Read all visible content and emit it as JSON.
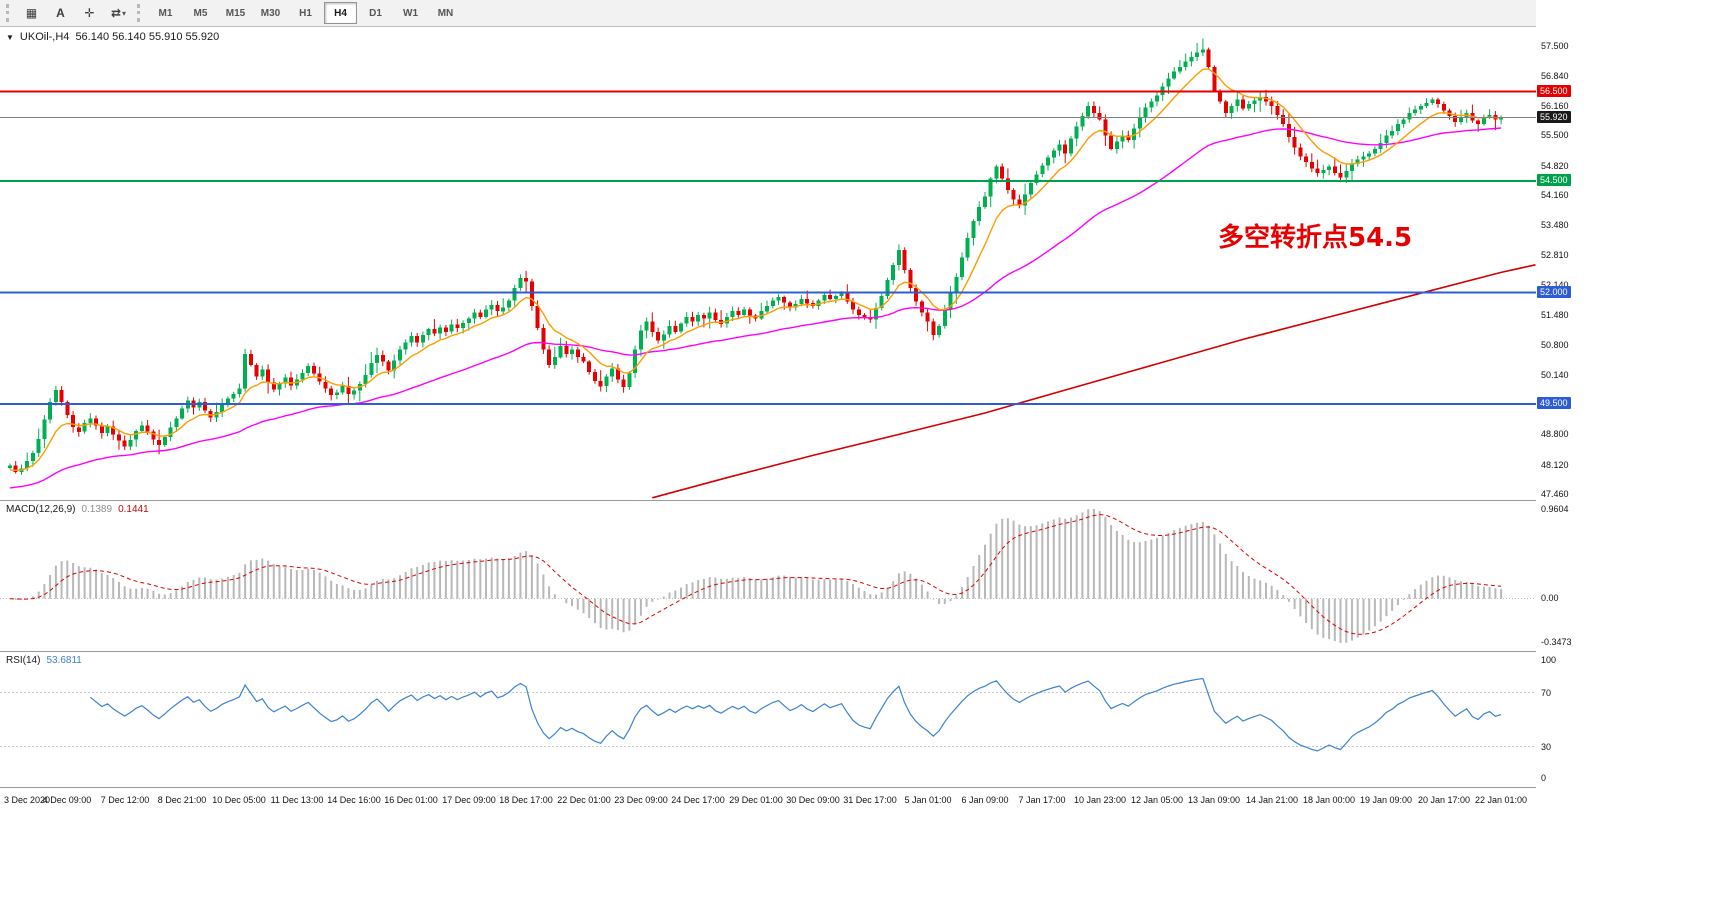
{
  "toolbar": {
    "icons": [
      {
        "name": "chart-grid-icon",
        "glyph": "▦"
      },
      {
        "name": "text-tool-icon",
        "glyph": "A"
      },
      {
        "name": "crosshair-icon",
        "glyph": "✛"
      },
      {
        "name": "objects-dropdown-icon",
        "glyph": "⇄"
      }
    ],
    "dropdown_caret": "▾",
    "timeframes": [
      {
        "label": "M1"
      },
      {
        "label": "M5"
      },
      {
        "label": "M15"
      },
      {
        "label": "M30"
      },
      {
        "label": "H1"
      },
      {
        "label": "H4"
      },
      {
        "label": "D1"
      },
      {
        "label": "W1"
      },
      {
        "label": "MN"
      }
    ],
    "active_timeframe": "H4"
  },
  "symbol_bar": {
    "collapse_icon": "▼",
    "symbol": "UKOil-,H4",
    "ohlc": "56.140 56.140 55.910 55.920"
  },
  "annotation": {
    "text": "多空转折点54.5",
    "color": "#e60000"
  },
  "price_axis": {
    "ticks": [
      "57.500",
      "56.840",
      "56.160",
      "55.500",
      "54.820",
      "54.160",
      "53.480",
      "52.810",
      "52.140",
      "51.480",
      "50.800",
      "50.140",
      "48.800",
      "48.120",
      "47.460"
    ],
    "badges": [
      {
        "label": "56.500",
        "color": "#e60000"
      },
      {
        "label": "55.920",
        "color": "#1a1a1a"
      },
      {
        "label": "54.500",
        "color": "#00a14b"
      },
      {
        "label": "52.000",
        "color": "#2e5cd5"
      },
      {
        "label": "49.500",
        "color": "#2e5cd5"
      }
    ]
  },
  "macd_panel": {
    "title": "MACD(12,26,9)",
    "main_value": "0.1389",
    "signal_value": "0.1441",
    "axis_top": "0.9604",
    "axis_zero": "0.00",
    "axis_bottom": "-0.3473"
  },
  "rsi_panel": {
    "title": "RSI(14)",
    "value": "53.6811",
    "axis": [
      "100",
      "70",
      "30",
      "0"
    ]
  },
  "time_axis": {
    "labels": [
      "3 Dec 2020",
      "4 Dec 09:00",
      "7 Dec 12:00",
      "8 Dec 21:00",
      "10 Dec 05:00",
      "11 Dec 13:00",
      "14 Dec 16:00",
      "16 Dec 01:00",
      "17 Dec 09:00",
      "18 Dec 17:00",
      "22 Dec 01:00",
      "23 Dec 09:00",
      "24 Dec 17:00",
      "29 Dec 01:00",
      "30 Dec 09:00",
      "31 Dec 17:00",
      "5 Jan 01:00",
      "6 Jan 09:00",
      "7 Jan 17:00",
      "10 Jan 23:00",
      "12 Jan 05:00",
      "13 Jan 09:00",
      "14 Jan 21:00",
      "18 Jan 00:00",
      "19 Jan 09:00",
      "20 Jan 17:00",
      "22 Jan 01:00"
    ]
  },
  "chart_data": {
    "type": "candlestick",
    "symbol": "UKOil-",
    "timeframe": "H4",
    "title": "UKOil-,H4",
    "current_bar_ohlc": [
      56.14,
      56.14,
      55.91,
      55.92
    ],
    "current_price": 55.92,
    "price_range": [
      47.35,
      57.95
    ],
    "up_color": "#00b050",
    "down_color": "#e60000",
    "closes": [
      48.12,
      47.98,
      48.06,
      48.22,
      48.4,
      48.72,
      49.15,
      49.55,
      49.82,
      49.55,
      49.25,
      48.98,
      48.88,
      49.08,
      49.18,
      49.02,
      48.85,
      49.0,
      48.82,
      48.68,
      48.55,
      48.7,
      48.9,
      49.02,
      48.88,
      48.7,
      48.58,
      48.76,
      48.98,
      49.18,
      49.4,
      49.58,
      49.42,
      49.55,
      49.35,
      49.2,
      49.32,
      49.5,
      49.62,
      49.72,
      49.85,
      50.62,
      50.38,
      50.12,
      50.28,
      49.98,
      49.82,
      49.96,
      50.1,
      49.92,
      50.05,
      50.2,
      50.35,
      50.18,
      50.0,
      49.85,
      49.7,
      49.76,
      49.9,
      49.72,
      49.8,
      49.95,
      50.15,
      50.42,
      50.6,
      50.45,
      50.25,
      50.48,
      50.72,
      50.88,
      51.02,
      50.88,
      51.05,
      51.18,
      51.08,
      51.22,
      51.12,
      51.28,
      51.2,
      51.32,
      51.42,
      51.55,
      51.45,
      51.62,
      51.72,
      51.58,
      51.66,
      51.82,
      52.1,
      52.32,
      52.25,
      51.7,
      51.2,
      50.72,
      50.38,
      50.55,
      50.8,
      50.62,
      50.72,
      50.55,
      50.45,
      50.22,
      50.02,
      49.9,
      50.12,
      50.3,
      50.05,
      49.88,
      50.2,
      50.72,
      51.15,
      51.35,
      51.12,
      50.92,
      51.06,
      51.25,
      51.12,
      51.3,
      51.45,
      51.35,
      51.5,
      51.42,
      51.55,
      51.38,
      51.3,
      51.45,
      51.58,
      51.5,
      51.62,
      51.48,
      51.42,
      51.58,
      51.7,
      51.82,
      51.9,
      51.78,
      51.66,
      51.74,
      51.86,
      51.76,
      51.7,
      51.82,
      51.94,
      51.86,
      51.92,
      51.98,
      51.8,
      51.62,
      51.5,
      51.44,
      51.4,
      51.65,
      51.92,
      52.28,
      52.62,
      52.95,
      52.5,
      52.1,
      51.8,
      51.55,
      51.35,
      51.05,
      51.25,
      51.62,
      51.98,
      52.35,
      52.78,
      53.22,
      53.6,
      53.92,
      54.15,
      54.55,
      54.82,
      54.55,
      54.3,
      54.08,
      53.95,
      54.2,
      54.45,
      54.65,
      54.85,
      55.02,
      55.18,
      55.32,
      55.12,
      55.45,
      55.72,
      55.95,
      56.18,
      56.02,
      55.88,
      55.52,
      55.22,
      55.38,
      55.52,
      55.42,
      55.68,
      55.92,
      56.15,
      56.28,
      56.42,
      56.62,
      56.8,
      56.95,
      57.05,
      57.18,
      57.28,
      57.38,
      57.45,
      57.05,
      56.52,
      56.28,
      56.02,
      56.18,
      56.32,
      56.12,
      56.22,
      56.3,
      56.38,
      56.28,
      56.18,
      55.98,
      55.78,
      55.48,
      55.25,
      55.05,
      54.92,
      54.78,
      54.68,
      54.75,
      54.82,
      54.68,
      54.58,
      54.72,
      54.88,
      54.98,
      55.05,
      55.12,
      55.22,
      55.35,
      55.52,
      55.62,
      55.78,
      55.88,
      56.02,
      56.1,
      56.18,
      56.25,
      56.32,
      56.22,
      56.08,
      55.95,
      55.82,
      55.92,
      56.02,
      55.85,
      55.78,
      55.92,
      55.98,
      55.88,
      55.92
    ],
    "levels": [
      {
        "price": 56.5,
        "color": "#e60000"
      },
      {
        "price": 54.5,
        "color": "#00a14b"
      },
      {
        "price": 52.0,
        "color": "#2e5cd5"
      },
      {
        "price": 49.5,
        "color": "#2e5cd5"
      }
    ],
    "overlays": {
      "ema_fast": {
        "name": "ma-fast",
        "period": 9,
        "seed": 48.0,
        "color": "#ff9c00"
      },
      "ema_mid": {
        "name": "ma-mid",
        "period": 48,
        "seed": 47.6,
        "color": "#ff00ff"
      },
      "sma_long": {
        "name": "ma-long",
        "color": "#d40000",
        "points": [
          [
            112,
            47.4
          ],
          [
            125,
            47.85
          ],
          [
            140,
            48.35
          ],
          [
            155,
            48.82
          ],
          [
            170,
            49.3
          ],
          [
            185,
            49.85
          ],
          [
            200,
            50.4
          ],
          [
            215,
            50.95
          ],
          [
            230,
            51.45
          ],
          [
            245,
            51.95
          ],
          [
            260,
            52.45
          ],
          [
            266,
            52.62
          ]
        ]
      }
    },
    "indicators": {
      "macd": {
        "label": "MACD(12,26,9)",
        "fast": 12,
        "slow": 26,
        "signal": 9,
        "current_macd": 0.1389,
        "current_signal": 0.1441,
        "hist_color": "#b8b8b8",
        "signal_color": "#e00000",
        "axis_max": 0.9604,
        "axis_min": -0.3473
      },
      "rsi": {
        "label": "RSI(14)",
        "period": 14,
        "current": 53.6811,
        "color": "#3b82d0",
        "levels": [
          70,
          30
        ],
        "range": [
          0,
          100
        ]
      }
    }
  }
}
